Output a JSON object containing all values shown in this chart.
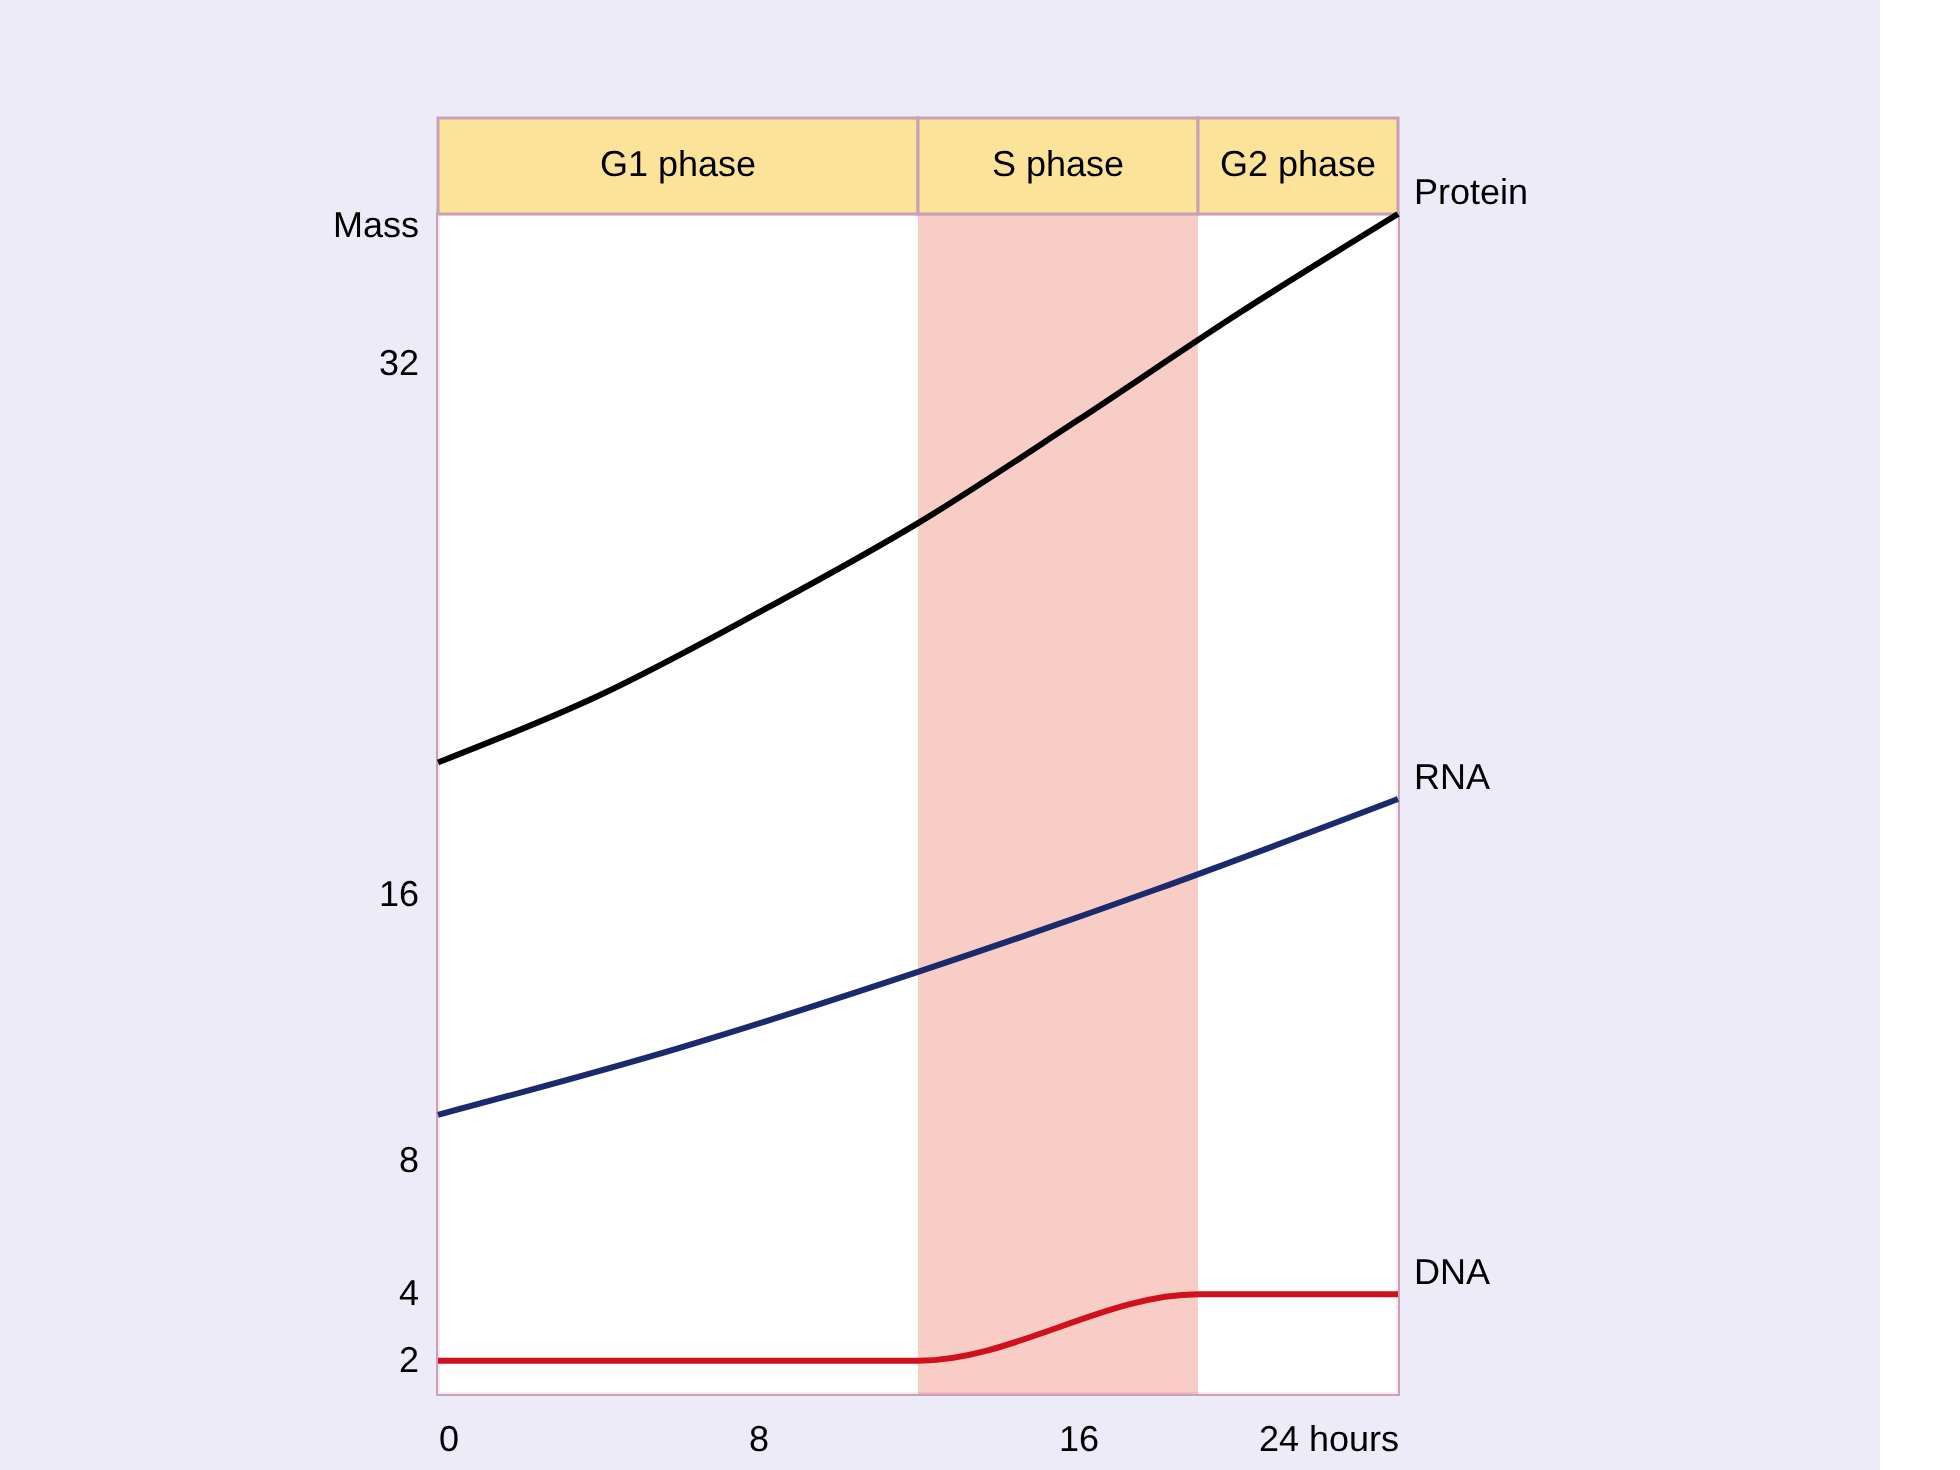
{
  "chart_data": {
    "type": "line",
    "ylabel": "Mass",
    "xlim": [
      0,
      24
    ],
    "ylim": [
      1,
      36.5
    ],
    "xticks": [
      0,
      8,
      16,
      {
        "value": 24,
        "label": "24 hours"
      }
    ],
    "yticks": [
      2,
      4,
      8,
      16,
      32
    ],
    "grid": false,
    "marker": "none",
    "line_style": "solid",
    "series": [
      {
        "name": "Protein",
        "color": "#000000",
        "x": [
          0,
          4,
          8,
          12,
          16,
          20,
          24
        ],
        "values": [
          20,
          22,
          24.5,
          27.2,
          30.3,
          33.5,
          36.5
        ]
      },
      {
        "name": "RNA",
        "color": "#1a2a6c",
        "x": [
          0,
          6,
          12,
          18,
          24
        ],
        "values": [
          9.4,
          11.4,
          13.7,
          16.2,
          18.9
        ]
      },
      {
        "name": "DNA",
        "color": "#d0101c",
        "x": [
          0,
          12,
          19,
          24
        ],
        "values": [
          2,
          2,
          4,
          4
        ]
      }
    ],
    "bands": [
      {
        "axis": "x",
        "from": 0,
        "to": 12,
        "label": "G1 phase",
        "color": "#ffffff"
      },
      {
        "axis": "x",
        "from": 12,
        "to": 19,
        "label": "S phase",
        "color": "#f6c0b8"
      },
      {
        "axis": "x",
        "from": 19,
        "to": 24,
        "label": "G2 phase",
        "color": "#ffffff"
      }
    ]
  }
}
